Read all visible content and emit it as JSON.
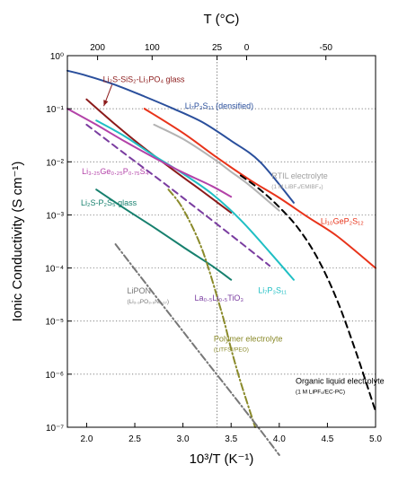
{
  "chart_data": {
    "type": "line",
    "title": "",
    "xlabel": "10³/T (K⁻¹)",
    "ylabel": "Ionic Conductivity (S cm⁻¹)",
    "x2label": "T (°C)",
    "x_ticks": [
      "2.0",
      "2.5",
      "3.0",
      "3.5",
      "4.0",
      "4.5",
      "5.0"
    ],
    "x_tick_values": [
      2.0,
      2.5,
      3.0,
      3.5,
      4.0,
      4.5,
      5.0
    ],
    "xlim": [
      1.8,
      5.0
    ],
    "y_ticks": [
      "10⁰",
      "10⁻¹",
      "10⁻²",
      "10⁻³",
      "10⁻⁴",
      "10⁻⁵",
      "10⁻⁶",
      "10⁻⁷"
    ],
    "y_tick_values": [
      0,
      -1,
      -2,
      -3,
      -4,
      -5,
      -6,
      -7
    ],
    "ylim_log10": [
      -7,
      0
    ],
    "y_scale": "log",
    "top_ticks": [
      {
        "label": "200",
        "x": 2.1135
      },
      {
        "label": "100",
        "x": 2.6798
      },
      {
        "label": "25",
        "x": 3.354
      },
      {
        "label": "0",
        "x": 3.661
      },
      {
        "label": "-50",
        "x": 4.4843
      }
    ],
    "reference_line": {
      "x": 3.354,
      "style": "dotted",
      "color": "#888888"
    },
    "grid": {
      "horizontal": true,
      "style": "dotted"
    },
    "series": [
      {
        "name": "Li₂S-SiS₂-Li₃PO₄ glass",
        "color": "#8B1A1A",
        "style": "solid",
        "x": [
          2.0,
          2.3,
          2.6,
          2.9,
          3.2,
          3.5
        ],
        "y": [
          0.15,
          0.05,
          0.018,
          0.007,
          0.0028,
          0.0011
        ]
      },
      {
        "name": "Li₇P₃S₁₁ (densified)",
        "color": "#2a4f9c",
        "style": "solid",
        "x": [
          1.8,
          2.0,
          2.3,
          2.6,
          2.9,
          3.2,
          3.5,
          3.8,
          4.15
        ],
        "y": [
          0.52,
          0.42,
          0.28,
          0.17,
          0.1,
          0.056,
          0.025,
          0.01,
          0.0017
        ]
      },
      {
        "name": "Li₁₀GeP₂S₁₂",
        "color": "#e8331a",
        "style": "solid",
        "x": [
          2.6,
          3.0,
          3.354,
          3.7,
          4.0,
          4.3,
          4.6,
          5.0
        ],
        "y": [
          0.1,
          0.035,
          0.012,
          0.0045,
          0.0021,
          0.0009,
          0.0004,
          0.0001
        ]
      },
      {
        "name": "Li₇P₃S₁₁",
        "color": "#1fbfc4",
        "style": "solid",
        "x": [
          2.1,
          2.4,
          2.7,
          3.0,
          3.3,
          3.6,
          3.9,
          4.15
        ],
        "y": [
          0.06,
          0.03,
          0.013,
          0.006,
          0.0025,
          0.0008,
          0.0002,
          6e-05
        ]
      },
      {
        "name": "RTIL electrolyte",
        "sublabel": "(1 M LiBF₄/EMIBF₄)",
        "color": "#b3b3b3",
        "style": "solid",
        "x": [
          2.7,
          3.0,
          3.3,
          3.5,
          3.7,
          4.0
        ],
        "y": [
          0.05,
          0.027,
          0.012,
          0.0065,
          0.0035,
          0.0012
        ]
      },
      {
        "name": "Li₃.₂₅Ge₀.₂₅P₀.₇₅S₄",
        "color": "#b342a8",
        "style": "solid",
        "x": [
          1.8,
          2.1,
          2.4,
          2.7,
          3.0,
          3.3,
          3.5
        ],
        "y": [
          0.1,
          0.05,
          0.024,
          0.012,
          0.0063,
          0.0035,
          0.0022
        ]
      },
      {
        "name": "Li₂S-P₂S₅ glass",
        "color": "#17806e",
        "style": "solid",
        "x": [
          2.1,
          2.4,
          2.7,
          3.0,
          3.3,
          3.5
        ],
        "y": [
          0.003,
          0.0013,
          0.00058,
          0.00025,
          0.00011,
          6e-05
        ]
      },
      {
        "name": "La₀.₅Li₀.₅TiO₃",
        "color": "#7a3da0",
        "style": "dashed",
        "x": [
          2.0,
          2.4,
          2.8,
          3.2,
          3.6,
          3.9
        ],
        "y": [
          0.05,
          0.014,
          0.004,
          0.0011,
          0.0003,
          0.00011
        ]
      },
      {
        "name": "Organic liquid electrolyte",
        "sublabel": "(1 M LiPF₆/EC-PC)",
        "color": "#000000",
        "style": "dashed",
        "x": [
          3.6,
          3.8,
          4.0,
          4.2,
          4.4,
          4.6,
          4.8,
          5.0
        ],
        "y": [
          0.0055,
          0.003,
          0.0014,
          0.00055,
          0.00015,
          2.5e-05,
          2.5e-06,
          2e-07
        ]
      },
      {
        "name": "Polymer electrolyte",
        "sublabel": "(LiTFSI/PEO)",
        "color": "#8a8a2a",
        "style": "dashdot",
        "x": [
          2.85,
          3.0,
          3.2,
          3.4,
          3.5,
          3.6,
          3.75
        ],
        "y": [
          0.003,
          0.0013,
          0.00022,
          1.5e-05,
          3e-06,
          7e-07,
          1e-07
        ]
      },
      {
        "name": "LiPON",
        "sublabel": "(Li₃.₃PO₃.₉N₀.₁₇)",
        "color": "#777777",
        "style": "dashdot",
        "x": [
          2.3,
          2.6,
          2.9,
          3.2,
          3.5,
          3.8,
          4.0
        ],
        "y": [
          0.00028,
          5.5e-05,
          1.1e-05,
          2.2e-06,
          4.5e-07,
          9e-08,
          3e-08
        ]
      }
    ],
    "annotations": [
      {
        "series": 0,
        "name": "Li₂S-SiS₂-Li₃PO₄ glass",
        "x": 2.17,
        "y": 0.32,
        "color": "#8B1A1A",
        "arrow_to": {
          "x": 2.15,
          "y": 0.1
        }
      },
      {
        "series": 1,
        "name": "Li₇P₃S₁₁ (densified)",
        "x": 3.02,
        "y": 0.1,
        "color": "#2a4f9c"
      },
      {
        "series": 4,
        "name": "RTIL electrolyte",
        "x": 3.92,
        "y": 0.0048,
        "color": "#a0a0a0"
      },
      {
        "series": 5,
        "name": "Li₃.₂₅Ge₀.₂₅P₀.₇₅S₄",
        "x": 1.95,
        "y": 0.0059,
        "color": "#b342a8"
      },
      {
        "series": 6,
        "name": "Li₂S-P₂S₅ glass",
        "x": 1.94,
        "y": 0.0015,
        "color": "#17806e"
      },
      {
        "series": 2,
        "name": "Li₁₀GeP₂S₁₂",
        "x": 4.43,
        "y": 0.00068,
        "color": "#e8331a"
      },
      {
        "series": 3,
        "name": "Li₇P₃S₁₁",
        "x": 3.78,
        "y": 3.4e-05,
        "color": "#1fbfc4"
      },
      {
        "series": 7,
        "name": "La₀.₅Li₀.₅TiO₃",
        "x": 3.12,
        "y": 2.4e-05,
        "color": "#7a3da0"
      },
      {
        "series": 10,
        "name": "LiPON",
        "x": 2.42,
        "y": 3.3e-05,
        "color": "#777777"
      },
      {
        "series": 9,
        "name": "Polymer electrolyte",
        "x": 3.32,
        "y": 4.1e-06,
        "color": "#8a8a2a"
      },
      {
        "series": 8,
        "name": "Organic liquid electrolyte",
        "x": 4.17,
        "y": 6.6e-07,
        "color": "#000000"
      }
    ]
  }
}
